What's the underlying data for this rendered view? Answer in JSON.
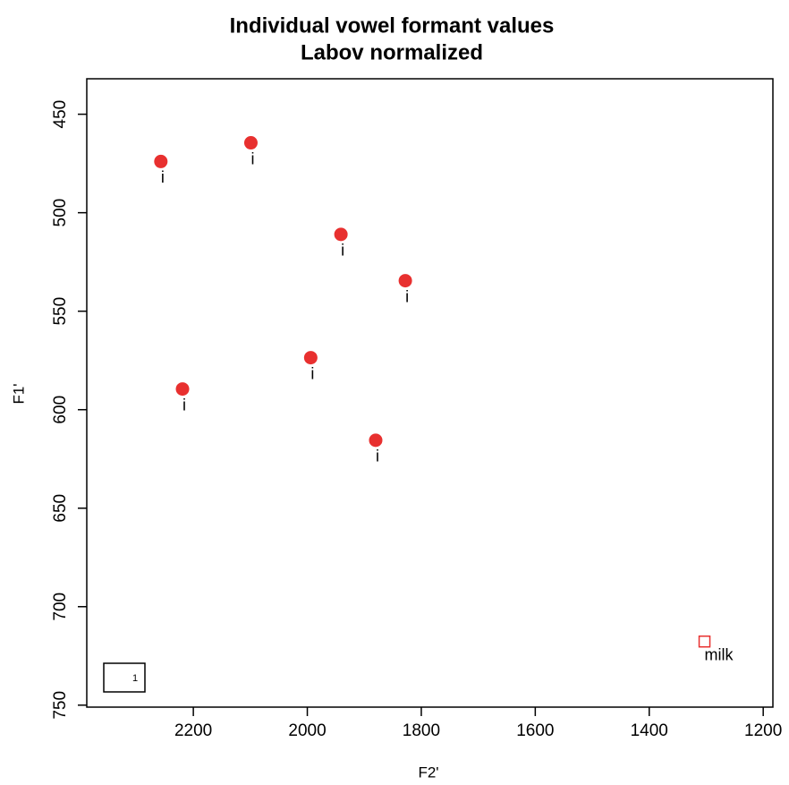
{
  "chart_data": {
    "type": "scatter",
    "title": "Individual vowel formant values",
    "subtitle": "Labov normalized",
    "x_label": "F2'",
    "y_label": "F1'",
    "xlim": [
      2387,
      1183
    ],
    "xticks": [
      2200,
      2000,
      1800,
      1600,
      1400,
      1200
    ],
    "ylim": [
      751,
      432
    ],
    "yticks": [
      450,
      500,
      550,
      600,
      650,
      700,
      750
    ],
    "series": [
      {
        "color": "#e8302f",
        "marker": "circle",
        "x": [
          2257,
          2099,
          1941,
          1828,
          1994,
          2219,
          1880
        ],
        "values": [
          474,
          464.5,
          511,
          534.5,
          573.6,
          589.5,
          615.5
        ],
        "labels": [
          "i",
          "i",
          "i",
          "i",
          "i",
          "i",
          "i"
        ]
      },
      {
        "color": "#e8302f",
        "marker": "square",
        "x": [
          1303
        ],
        "values": [
          717.7
        ],
        "labels": [
          "milk"
        ]
      }
    ],
    "legend": {
      "label": "1",
      "color": "#e8302f",
      "position": "bottom-left"
    }
  }
}
